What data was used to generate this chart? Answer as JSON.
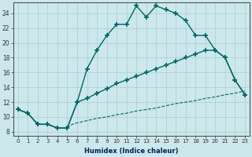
{
  "xlabel": "Humidex (Indice chaleur)",
  "bg_color": "#cce8ec",
  "grid_color": "#aacccc",
  "line_color": "#006666",
  "xlim": [
    -0.5,
    23.5
  ],
  "ylim": [
    7.5,
    25.5
  ],
  "xticks": [
    0,
    1,
    2,
    3,
    4,
    5,
    6,
    7,
    8,
    9,
    10,
    11,
    12,
    13,
    14,
    15,
    16,
    17,
    18,
    19,
    20,
    21,
    22,
    23
  ],
  "yticks": [
    8,
    10,
    12,
    14,
    16,
    18,
    20,
    22,
    24
  ],
  "curve1_x": [
    0,
    1,
    2,
    3,
    4,
    5,
    6,
    7,
    8,
    9,
    10,
    11,
    12,
    13,
    14,
    15,
    16,
    17,
    18,
    19,
    20,
    21,
    22,
    23
  ],
  "curve1_y": [
    11,
    10.5,
    9,
    9,
    8.5,
    8.5,
    12,
    16.5,
    19,
    21,
    22.5,
    22.5,
    25,
    23.5,
    25,
    24.5,
    24,
    23,
    21,
    21,
    19,
    18,
    15,
    13
  ],
  "curve2_x": [
    0,
    1,
    2,
    3,
    4,
    5,
    6,
    7,
    8,
    9,
    10,
    11,
    12,
    13,
    14,
    15,
    16,
    17,
    18,
    19,
    20,
    21,
    22,
    23
  ],
  "curve2_y": [
    11,
    10.5,
    9,
    9,
    8.5,
    8.5,
    12,
    12.5,
    13.2,
    13.8,
    14.5,
    15,
    15.5,
    16,
    16.5,
    17,
    17.5,
    18,
    18.5,
    19,
    19,
    18,
    15,
    13
  ],
  "curve3_x": [
    0,
    1,
    2,
    3,
    4,
    5,
    5.5,
    6,
    7,
    8,
    9,
    10,
    11,
    12,
    13,
    14,
    15,
    16,
    17,
    18,
    19,
    20,
    21,
    22,
    23
  ],
  "curve3_y": [
    11,
    10.5,
    9,
    9,
    8.5,
    8.5,
    9,
    9.2,
    9.5,
    9.8,
    10,
    10.3,
    10.5,
    10.8,
    11,
    11.2,
    11.5,
    11.8,
    12,
    12.2,
    12.5,
    12.7,
    13,
    13.2,
    13.5
  ]
}
